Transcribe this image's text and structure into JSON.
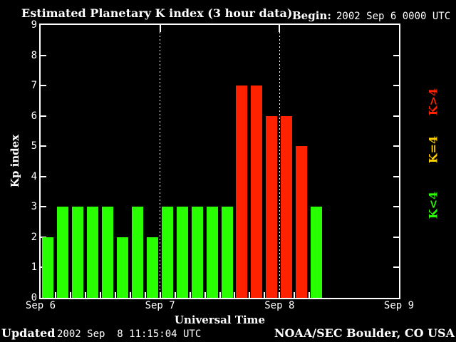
{
  "header": {
    "begin_label": "Begin:",
    "begin_value": "2002 Sep 6 0000 UTC"
  },
  "footer": {
    "updated_label": "Updated",
    "updated_value": "2002 Sep  8 11:15:04 UTC",
    "credit": "NOAA/SEC Boulder, CO USA"
  },
  "chart_data": {
    "type": "bar",
    "title": "Estimated Planetary K index (3 hour data)",
    "ylabel": "Kp index",
    "xlabel": "Universal Time",
    "ylim": [
      0,
      9
    ],
    "yticks": [
      0,
      1,
      2,
      3,
      4,
      5,
      6,
      7,
      8,
      9
    ],
    "x_day_labels": [
      "Sep 6",
      "Sep 7",
      "Sep 8",
      "Sep 9"
    ],
    "hours_per_bar": 3,
    "bars_per_day": 8,
    "start_time": "2002 Sep 6 0000 UTC",
    "values": [
      2,
      3,
      3,
      3,
      3,
      2,
      3,
      2,
      3,
      3,
      3,
      3,
      3,
      7,
      7,
      6,
      6,
      5,
      3
    ],
    "day_boundary_gridlines": "dotted",
    "legend_position": "right-rotated",
    "legend": [
      {
        "label": "K<4",
        "color": "#28ff00"
      },
      {
        "label": "K=4",
        "color": "#ffd000"
      },
      {
        "label": "K>4",
        "color": "#ff2200"
      }
    ],
    "colors": {
      "background": "#000000",
      "axis": "#ffffff",
      "text": "#ffffff",
      "bar_low": "#28ff00",
      "bar_mid": "#ffd000",
      "bar_high": "#ff2200"
    }
  }
}
